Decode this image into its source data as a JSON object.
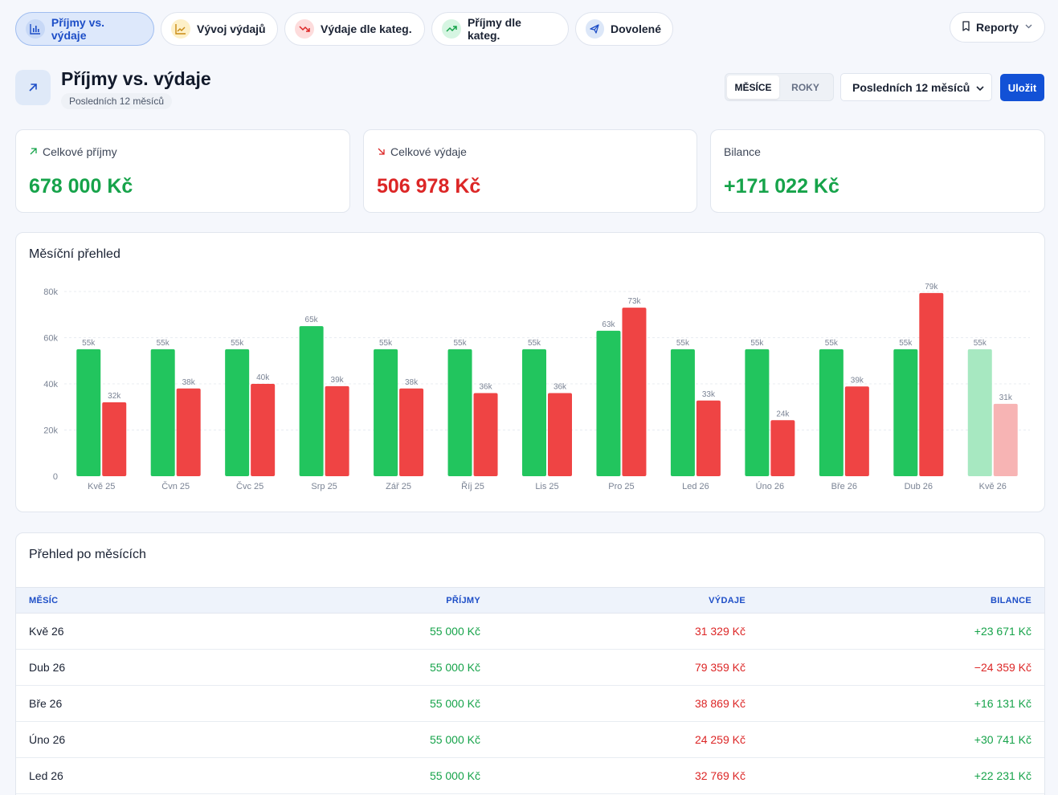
{
  "tabs": [
    {
      "label": "Příjmy vs. výdaje",
      "icon": "bar-chart-icon",
      "active": true
    },
    {
      "label": "Vývoj výdajů",
      "icon": "line-chart-icon",
      "active": false
    },
    {
      "label": "Výdaje dle kateg.",
      "icon": "trending-down-icon",
      "active": false
    },
    {
      "label": "Příjmy dle kateg.",
      "icon": "trending-up-icon",
      "active": false
    },
    {
      "label": "Dovolené",
      "icon": "plane-icon",
      "active": false
    }
  ],
  "reports_button": "Reporty",
  "header": {
    "title": "Příjmy vs. výdaje",
    "subtitle": "Posledních 12 měsíců"
  },
  "period_toggle": {
    "months": "MĚSÍCE",
    "years": "ROKY"
  },
  "range_select": {
    "value": "Posledních 12 měsíců"
  },
  "save_button": "Uložit",
  "stats": {
    "income": {
      "label": "Celkové příjmy",
      "value": "678 000 Kč"
    },
    "expenses": {
      "label": "Celkové výdaje",
      "value": "506 978 Kč"
    },
    "balance": {
      "label": "Bilance",
      "value": "+171 022 Kč"
    }
  },
  "colors": {
    "income": "#22c55e",
    "expense": "#ef4444",
    "income_current": "#a7e8c1",
    "expense_current": "#f7b4b4",
    "income_text": "#16a34a",
    "expense_text": "#dc2626",
    "accent": "#1251d6"
  },
  "chart_card": {
    "title": "Měsíční přehled"
  },
  "chart_data": {
    "type": "bar",
    "title": "Měsíční přehled",
    "categories": [
      "Kvě 25",
      "Čvn 25",
      "Čvc 25",
      "Srp 25",
      "Zář 25",
      "Říj 25",
      "Lis 25",
      "Pro 25",
      "Led 26",
      "Úno 26",
      "Bře 26",
      "Dub 26",
      "Kvě 26"
    ],
    "series": [
      {
        "values": [
          55000,
          55000,
          55000,
          65000,
          55000,
          55000,
          55000,
          63000,
          55000,
          55000,
          55000,
          55000,
          55000
        ],
        "labels": [
          "55k",
          "55k",
          "55k",
          "65k",
          "55k",
          "55k",
          "55k",
          "63k",
          "55k",
          "55k",
          "55k",
          "55k",
          "55k"
        ]
      },
      {
        "values": [
          32000,
          38000,
          40000,
          39000,
          38000,
          36000,
          36000,
          73000,
          32769,
          24259,
          38869,
          79359,
          31329
        ],
        "labels": [
          "32k",
          "38k",
          "40k",
          "39k",
          "38k",
          "36k",
          "36k",
          "73k",
          "33k",
          "24k",
          "39k",
          "79k",
          "31k"
        ]
      }
    ],
    "yticks": [
      "0",
      "20k",
      "40k",
      "60k",
      "80k"
    ],
    "ytick_values": [
      0,
      20000,
      40000,
      60000,
      80000
    ],
    "ylim": [
      0,
      80000
    ],
    "grid": true,
    "legend": "none"
  },
  "table": {
    "title": "Přehled po měsících",
    "columns": [
      "MĚSÍC",
      "PŘÍJMY",
      "VÝDAJE",
      "BILANCE"
    ],
    "rows": [
      {
        "month": "Kvě 26",
        "income": "55 000 Kč",
        "expenses": "31 329 Kč",
        "balance": "+23 671 Kč",
        "positive": true
      },
      {
        "month": "Dub 26",
        "income": "55 000 Kč",
        "expenses": "79 359 Kč",
        "balance": "−24 359 Kč",
        "positive": false
      },
      {
        "month": "Bře 26",
        "income": "55 000 Kč",
        "expenses": "38 869 Kč",
        "balance": "+16 131 Kč",
        "positive": true
      },
      {
        "month": "Úno 26",
        "income": "55 000 Kč",
        "expenses": "24 259 Kč",
        "balance": "+30 741 Kč",
        "positive": true
      },
      {
        "month": "Led 26",
        "income": "55 000 Kč",
        "expenses": "32 769 Kč",
        "balance": "+22 231 Kč",
        "positive": true
      }
    ]
  }
}
